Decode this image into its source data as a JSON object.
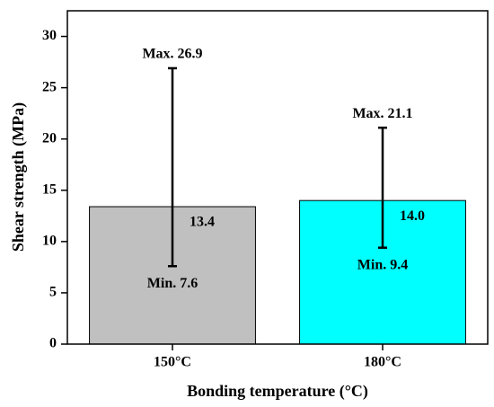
{
  "chart_data": {
    "type": "bar",
    "categories": [
      "150°C",
      "180°C"
    ],
    "values": [
      13.4,
      14.0
    ],
    "value_labels": [
      "13.4",
      "14.0"
    ],
    "colors": [
      "#c0c0c0",
      "#00ffff"
    ],
    "max": [
      26.9,
      21.1
    ],
    "max_labels": [
      "Max. 26.9",
      "Max. 21.1"
    ],
    "min": [
      7.6,
      9.4
    ],
    "min_labels": [
      "Min. 7.6",
      "Min. 9.4"
    ],
    "xlabel": "Bonding temperature (°C)",
    "ylabel": "Shear strength (MPa)",
    "ylim": [
      0,
      32.5
    ],
    "yticks": [
      0,
      5,
      10,
      15,
      20,
      25,
      30
    ]
  }
}
